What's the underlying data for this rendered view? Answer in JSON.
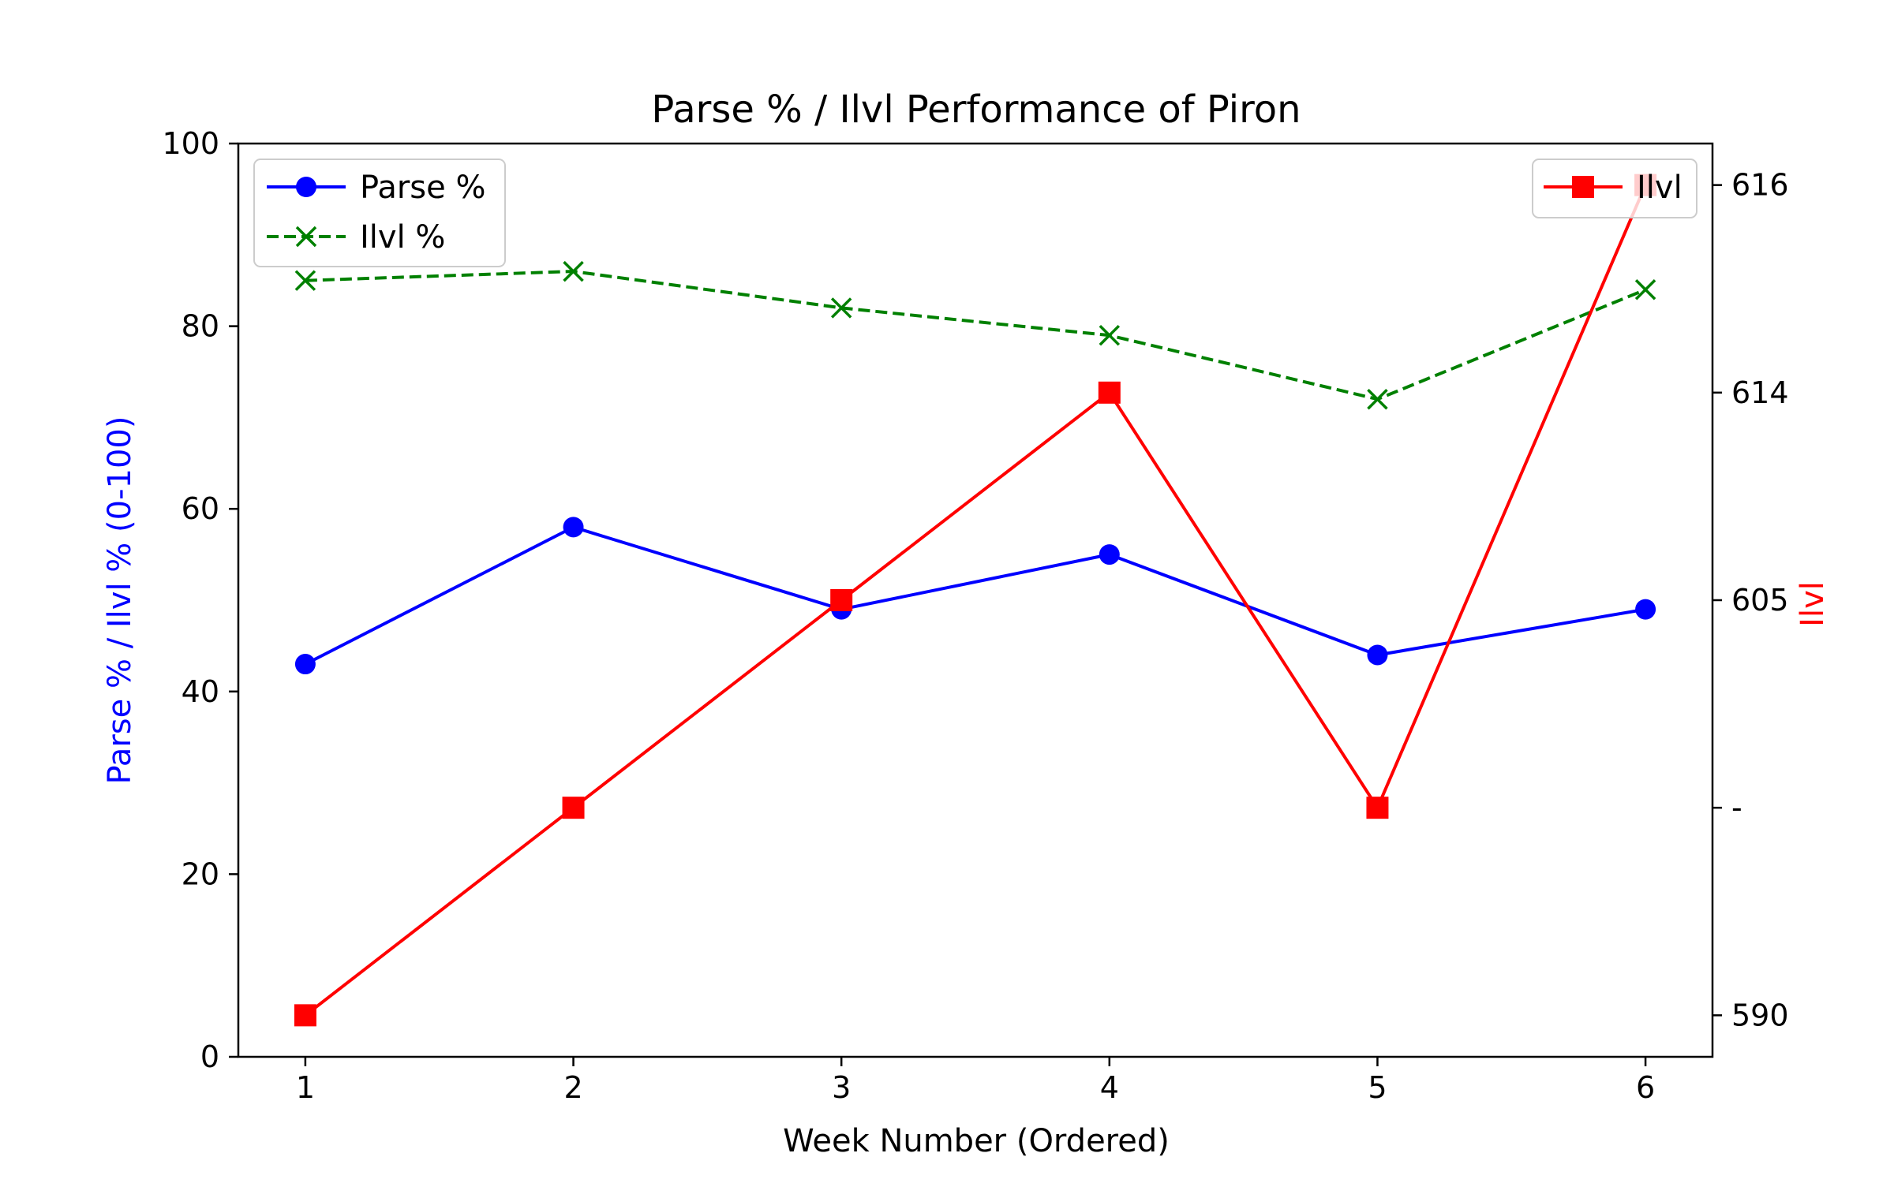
{
  "chart_data": {
    "type": "line",
    "title": "Parse % / Ilvl Performance of Piron",
    "xlabel": "Week Number (Ordered)",
    "ylabel": "Parse % / Ilvl % (0-100)",
    "y2label": "Ilvl",
    "x": [
      1,
      2,
      3,
      4,
      5,
      6
    ],
    "x_ticks": [
      "1",
      "2",
      "3",
      "4",
      "5",
      "6"
    ],
    "xlim": [
      0.75,
      6.25
    ],
    "ylim": [
      0,
      100
    ],
    "y_ticks": [
      "0",
      "20",
      "40",
      "60",
      "80",
      "100"
    ],
    "y2_ticks": [
      "590",
      "-",
      "605",
      "614",
      "616"
    ],
    "grid": false,
    "legend_left": "top-left",
    "legend_right": "top-right",
    "series": [
      {
        "name": "Parse %",
        "axis": "left",
        "values": [
          43,
          58,
          49,
          55,
          44,
          49
        ],
        "color": "#0000ff",
        "marker": "circle",
        "line": "solid"
      },
      {
        "name": "Ilvl %",
        "axis": "left",
        "values": [
          85,
          86,
          82,
          79,
          72,
          84
        ],
        "color": "#008000",
        "marker": "x",
        "line": "dashed"
      },
      {
        "name": "Ilvl",
        "axis": "right",
        "values": [
          "590",
          "-",
          "605",
          "614",
          "-",
          "616"
        ],
        "color": "#ff0000",
        "marker": "square",
        "line": "solid"
      }
    ]
  }
}
